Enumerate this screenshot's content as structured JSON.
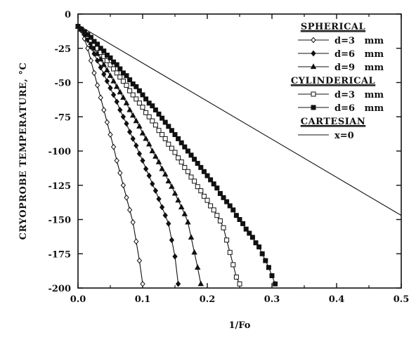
{
  "chart_data": {
    "type": "line",
    "xlabel": "1/Fo",
    "ylabel": "CRYOPROBE TEMPERATURE, °C",
    "xlim": [
      0.0,
      0.5
    ],
    "ylim": [
      -200,
      0
    ],
    "xticks": [
      "0.0",
      "0.1",
      "0.2",
      "0.3",
      "0.4",
      "0.5"
    ],
    "yticks": [
      "0",
      "-25",
      "-50",
      "-75",
      "-100",
      "-125",
      "-150",
      "-175",
      "-200"
    ],
    "grid": false,
    "legend_position": "top-right",
    "legend": [
      {
        "type": "heading",
        "text": "SPHERICAL"
      },
      {
        "type": "entry",
        "series": 0
      },
      {
        "type": "entry",
        "series": 1
      },
      {
        "type": "entry",
        "series": 2
      },
      {
        "type": "heading",
        "text": "CYLINDERICAL"
      },
      {
        "type": "entry",
        "series": 3
      },
      {
        "type": "entry",
        "series": 4
      },
      {
        "type": "heading",
        "text": "CARTESIAN"
      },
      {
        "type": "entry",
        "series": 5
      }
    ],
    "series": [
      {
        "name": "d=3   mm",
        "group": "SPHERICAL",
        "marker": "diamond-open",
        "x": [
          0.0,
          0.005,
          0.01,
          0.015,
          0.02,
          0.025,
          0.03,
          0.035,
          0.04,
          0.045,
          0.05,
          0.055,
          0.06,
          0.065,
          0.07,
          0.075,
          0.08,
          0.085,
          0.09,
          0.095,
          0.1
        ],
        "y": [
          -9,
          -12,
          -18,
          -25,
          -34,
          -43,
          -52,
          -61,
          -70,
          -79,
          -88,
          -97,
          -107,
          -116,
          -125,
          -134,
          -143,
          -152,
          -166,
          -180,
          -197
        ]
      },
      {
        "name": "d=6   mm",
        "group": "SPHERICAL",
        "marker": "diamond-filled",
        "x": [
          0.0,
          0.005,
          0.01,
          0.015,
          0.02,
          0.025,
          0.03,
          0.035,
          0.04,
          0.045,
          0.05,
          0.055,
          0.06,
          0.065,
          0.07,
          0.075,
          0.08,
          0.085,
          0.09,
          0.095,
          0.1,
          0.105,
          0.11,
          0.115,
          0.12,
          0.125,
          0.13,
          0.135,
          0.14,
          0.145,
          0.15,
          0.155
        ],
        "y": [
          -9,
          -11,
          -15,
          -19,
          -24,
          -29,
          -34,
          -39,
          -44,
          -49,
          -54,
          -59,
          -64,
          -70,
          -75,
          -80,
          -86,
          -91,
          -96,
          -102,
          -107,
          -113,
          -118,
          -124,
          -129,
          -135,
          -141,
          -147,
          -153,
          -165,
          -177,
          -197
        ]
      },
      {
        "name": "d=9   mm",
        "group": "SPHERICAL",
        "marker": "triangle-filled",
        "x": [
          0.0,
          0.005,
          0.01,
          0.015,
          0.02,
          0.025,
          0.03,
          0.035,
          0.04,
          0.045,
          0.05,
          0.055,
          0.06,
          0.065,
          0.07,
          0.075,
          0.08,
          0.085,
          0.09,
          0.095,
          0.1,
          0.105,
          0.11,
          0.115,
          0.12,
          0.125,
          0.13,
          0.135,
          0.14,
          0.145,
          0.15,
          0.155,
          0.16,
          0.165,
          0.17,
          0.175,
          0.18,
          0.185,
          0.19
        ],
        "y": [
          -9,
          -11,
          -14,
          -17,
          -21,
          -25,
          -29,
          -33,
          -37,
          -41,
          -45,
          -49,
          -53,
          -57,
          -61,
          -65,
          -70,
          -74,
          -78,
          -82,
          -87,
          -91,
          -95,
          -100,
          -104,
          -108,
          -113,
          -117,
          -122,
          -126,
          -131,
          -136,
          -141,
          -146,
          -152,
          -163,
          -174,
          -185,
          -197
        ]
      },
      {
        "name": "d=3   mm",
        "group": "CYLINDERICAL",
        "marker": "square-open",
        "x": [
          0.0,
          0.005,
          0.01,
          0.015,
          0.02,
          0.025,
          0.03,
          0.035,
          0.04,
          0.045,
          0.05,
          0.055,
          0.06,
          0.065,
          0.07,
          0.075,
          0.08,
          0.085,
          0.09,
          0.095,
          0.1,
          0.105,
          0.11,
          0.115,
          0.12,
          0.125,
          0.13,
          0.135,
          0.14,
          0.145,
          0.15,
          0.155,
          0.16,
          0.165,
          0.17,
          0.175,
          0.18,
          0.185,
          0.19,
          0.195,
          0.2,
          0.205,
          0.21,
          0.215,
          0.22,
          0.225,
          0.23,
          0.235,
          0.24,
          0.245,
          0.25
        ],
        "y": [
          -9,
          -11,
          -13,
          -16,
          -19,
          -22,
          -25,
          -28,
          -31,
          -34,
          -37,
          -40,
          -43,
          -46,
          -49,
          -52,
          -56,
          -59,
          -62,
          -65,
          -68,
          -72,
          -75,
          -78,
          -81,
          -85,
          -88,
          -91,
          -95,
          -98,
          -101,
          -105,
          -108,
          -112,
          -115,
          -119,
          -122,
          -126,
          -129,
          -133,
          -136,
          -140,
          -143,
          -147,
          -151,
          -156,
          -165,
          -174,
          -183,
          -192,
          -197
        ]
      },
      {
        "name": "d=6   mm",
        "group": "CYLINDERICAL",
        "marker": "square-filled",
        "x": [
          0.0,
          0.005,
          0.01,
          0.015,
          0.02,
          0.025,
          0.03,
          0.035,
          0.04,
          0.045,
          0.05,
          0.055,
          0.06,
          0.065,
          0.07,
          0.075,
          0.08,
          0.085,
          0.09,
          0.095,
          0.1,
          0.105,
          0.11,
          0.115,
          0.12,
          0.125,
          0.13,
          0.135,
          0.14,
          0.145,
          0.15,
          0.155,
          0.16,
          0.165,
          0.17,
          0.175,
          0.18,
          0.185,
          0.19,
          0.195,
          0.2,
          0.205,
          0.21,
          0.215,
          0.22,
          0.225,
          0.23,
          0.235,
          0.24,
          0.245,
          0.25,
          0.255,
          0.26,
          0.265,
          0.27,
          0.275,
          0.28,
          0.285,
          0.29,
          0.295,
          0.3,
          0.305
        ],
        "y": [
          -9,
          -11,
          -13,
          -15,
          -17,
          -20,
          -22,
          -25,
          -27,
          -30,
          -32,
          -35,
          -37,
          -40,
          -43,
          -45,
          -48,
          -51,
          -53,
          -56,
          -59,
          -62,
          -65,
          -67,
          -70,
          -73,
          -76,
          -79,
          -82,
          -85,
          -88,
          -91,
          -94,
          -97,
          -100,
          -103,
          -106,
          -109,
          -112,
          -115,
          -118,
          -121,
          -124,
          -127,
          -131,
          -134,
          -137,
          -140,
          -143,
          -147,
          -150,
          -153,
          -157,
          -160,
          -163,
          -167,
          -170,
          -175,
          -180,
          -185,
          -191,
          -197
        ]
      },
      {
        "name": "x=0",
        "group": "CARTESIAN",
        "marker": "none",
        "x": [
          0.0,
          0.5
        ],
        "y": [
          -8,
          -147
        ]
      }
    ]
  }
}
